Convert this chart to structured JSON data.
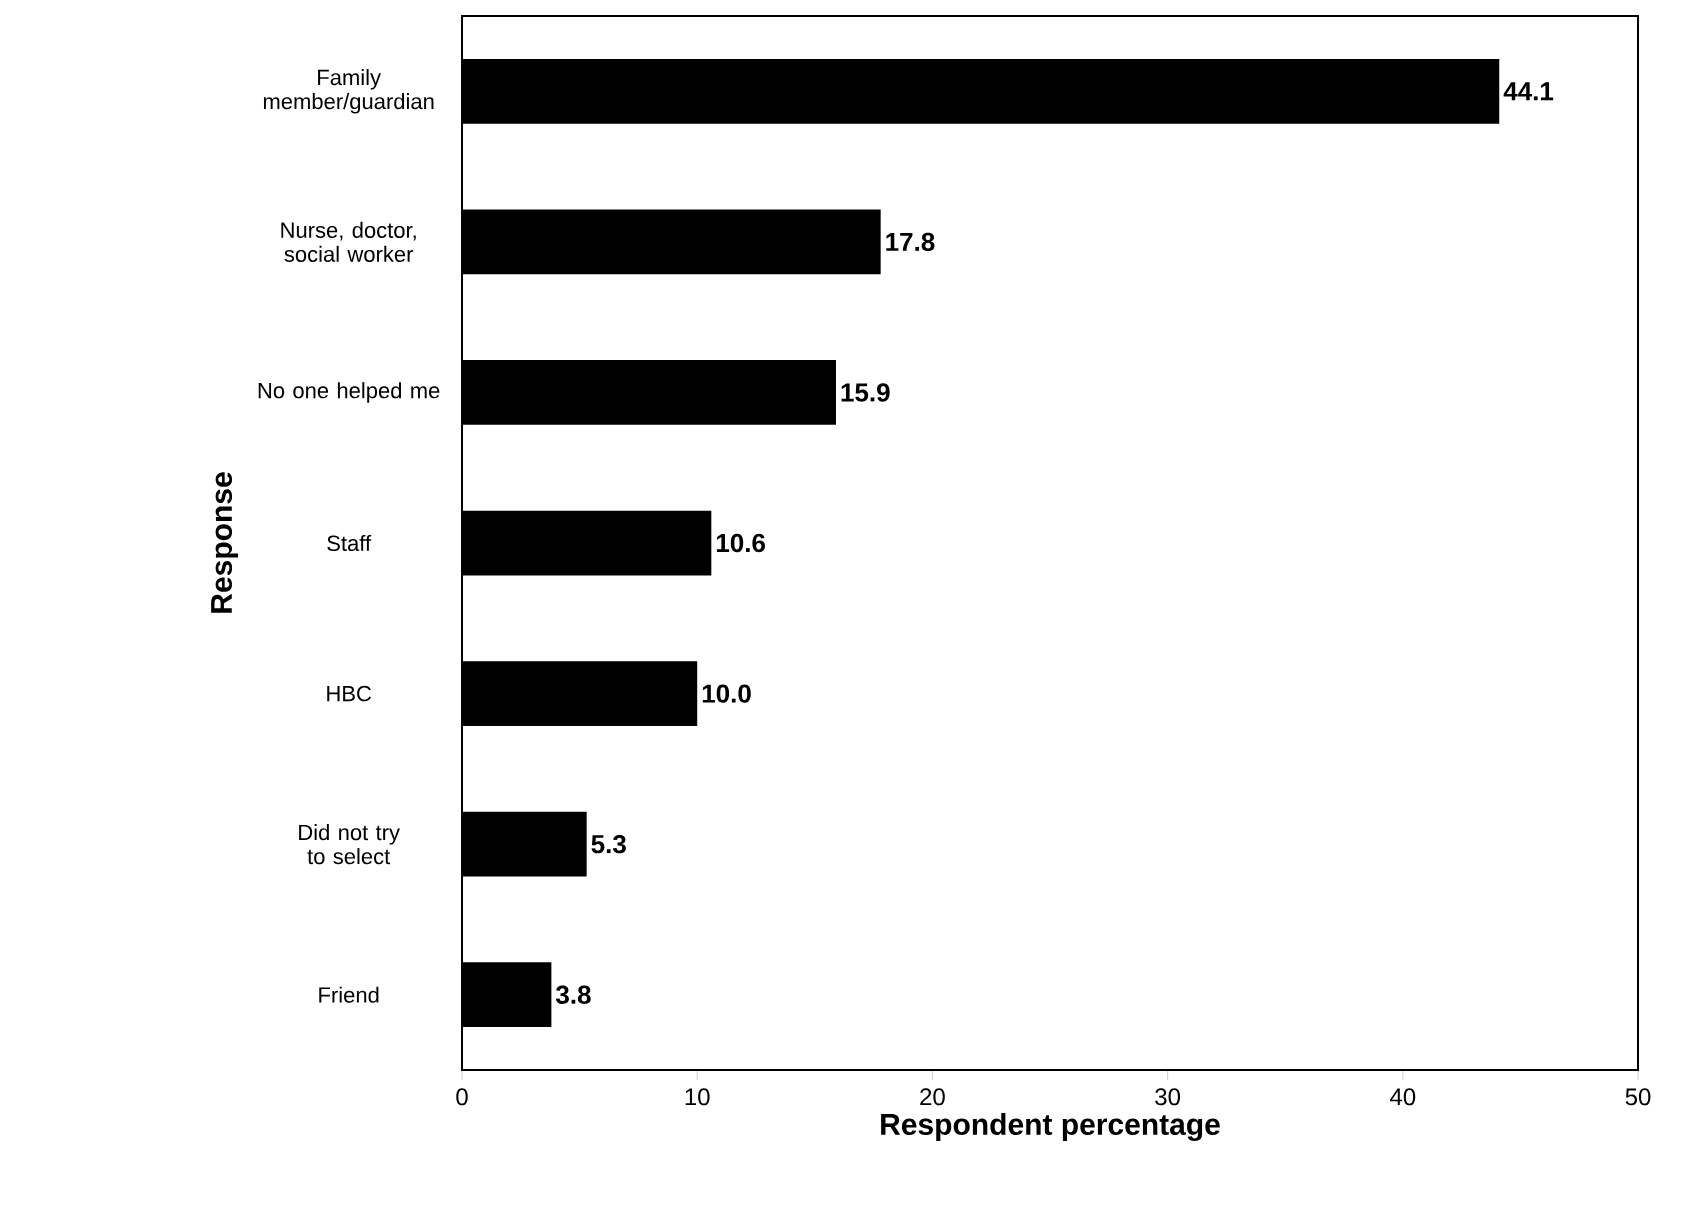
{
  "chart_data": {
    "type": "bar",
    "orientation": "horizontal",
    "categories": [
      "Family member/guardian",
      "Nurse, doctor, social worker",
      "No one helped me",
      "Staff",
      "HBC",
      "Did not try to select",
      "Friend"
    ],
    "values": [
      44.1,
      17.8,
      15.9,
      10.6,
      10.0,
      5.3,
      3.8
    ],
    "color": "#000000",
    "xlabel": "Respondent percentage",
    "ylabel": "Response",
    "xlim": [
      0,
      50
    ],
    "xticks": [
      0,
      10,
      20,
      30,
      40,
      50
    ],
    "value_labels": [
      "44.1",
      "17.8",
      "15.9",
      "10.6",
      "10.0",
      "5.3",
      "3.8"
    ]
  }
}
